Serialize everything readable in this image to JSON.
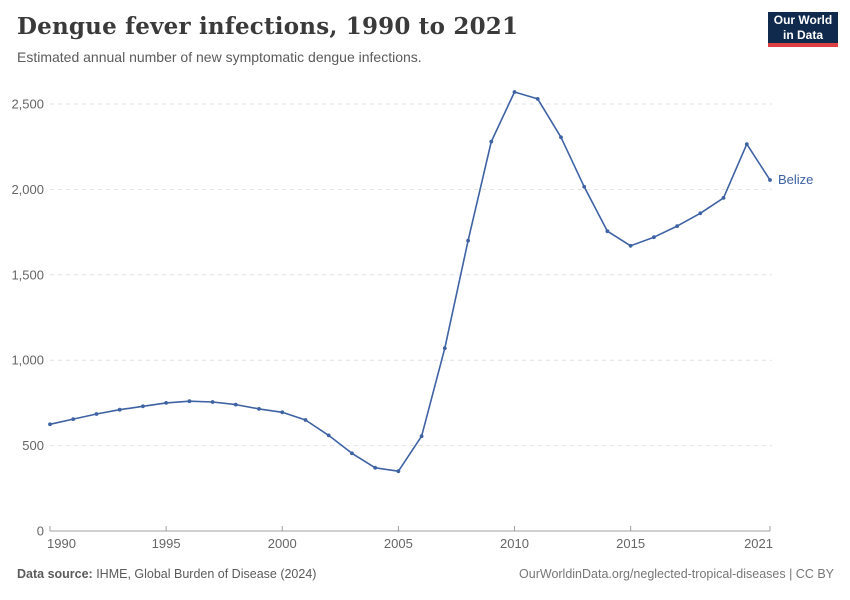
{
  "header": {
    "title": "Dengue fever infections, 1990 to 2021",
    "subtitle": "Estimated annual number of new symptomatic dengue infections."
  },
  "logo": {
    "line1": "Our World",
    "line2": "in Data",
    "bg_color": "#102A4E",
    "accent_color": "#DC3F42"
  },
  "footer": {
    "source_label": "Data source:",
    "source_value": " IHME, Global Burden of Disease (2024)",
    "credit": "OurWorldinData.org/neglected-tropical-diseases | CC BY"
  },
  "chart_data": {
    "type": "line",
    "title": "Dengue fever infections, 1990 to 2021",
    "xlabel": "",
    "ylabel": "",
    "xlim": [
      1990,
      2021
    ],
    "ylim": [
      0,
      2500
    ],
    "xticks": [
      1990,
      1995,
      2000,
      2005,
      2010,
      2015,
      2021
    ],
    "yticks": [
      0,
      500,
      1000,
      1500,
      2000,
      2500
    ],
    "grid": "horizontal-dashed",
    "legend_position": "end-of-line-label",
    "x": [
      1990,
      1991,
      1992,
      1993,
      1994,
      1995,
      1996,
      1997,
      1998,
      1999,
      2000,
      2001,
      2002,
      2003,
      2004,
      2005,
      2006,
      2007,
      2008,
      2009,
      2010,
      2011,
      2012,
      2013,
      2014,
      2015,
      2016,
      2017,
      2018,
      2019,
      2020,
      2021
    ],
    "series": [
      {
        "name": "Belize",
        "color": "#3E62A3",
        "values": [
          625,
          655,
          685,
          710,
          730,
          750,
          760,
          755,
          740,
          715,
          695,
          650,
          560,
          455,
          370,
          350,
          555,
          1070,
          1700,
          2280,
          2570,
          2530,
          2305,
          2015,
          1755,
          1670,
          1720,
          1785,
          1860,
          1950,
          2265,
          2055
        ]
      }
    ]
  }
}
